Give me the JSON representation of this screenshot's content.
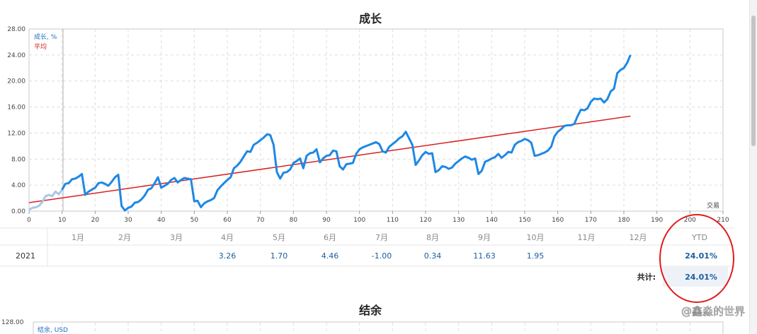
{
  "chart_data": [
    {
      "type": "line",
      "title": "成长",
      "xlabel": "交易",
      "ylabel": "",
      "xlim": [
        0,
        210
      ],
      "ylim": [
        0,
        28
      ],
      "x_ticks": [
        "0",
        "10",
        "20",
        "30",
        "40",
        "50",
        "60",
        "70",
        "80",
        "90",
        "100",
        "110",
        "120",
        "130",
        "140",
        "150",
        "160",
        "170",
        "180",
        "190",
        "200",
        "210"
      ],
      "y_ticks": [
        "0.00",
        "4.00",
        "8.00",
        "12.00",
        "16.00",
        "20.00",
        "24.00",
        "28.00"
      ],
      "grid": true,
      "legend_position": "top-left",
      "series": [
        {
          "name": "成长, %",
          "color": "#1e88e5",
          "points": [
            [
              0,
              0.2
            ],
            [
              1,
              0.5
            ],
            [
              2,
              0.6
            ],
            [
              3,
              0.8
            ],
            [
              4,
              1.4
            ],
            [
              5,
              2.3
            ],
            [
              6,
              2.5
            ],
            [
              7,
              2.3
            ],
            [
              8,
              3.0
            ],
            [
              9,
              2.6
            ],
            [
              10,
              3.3
            ],
            [
              11,
              4.2
            ],
            [
              12,
              4.3
            ],
            [
              13,
              4.9
            ],
            [
              14,
              5.0
            ],
            [
              15,
              5.3
            ],
            [
              16,
              5.7
            ],
            [
              17,
              2.5
            ],
            [
              18,
              3.0
            ],
            [
              19,
              3.3
            ],
            [
              20,
              3.6
            ],
            [
              21,
              4.3
            ],
            [
              22,
              4.4
            ],
            [
              23,
              4.2
            ],
            [
              24,
              3.9
            ],
            [
              25,
              4.5
            ],
            [
              26,
              5.2
            ],
            [
              27,
              5.6
            ],
            [
              28,
              0.8
            ],
            [
              29,
              0.1
            ],
            [
              30,
              0.5
            ],
            [
              31,
              0.7
            ],
            [
              32,
              1.3
            ],
            [
              33,
              1.4
            ],
            [
              34,
              1.8
            ],
            [
              35,
              2.4
            ],
            [
              36,
              3.3
            ],
            [
              37,
              3.5
            ],
            [
              38,
              4.3
            ],
            [
              39,
              5.2
            ],
            [
              40,
              3.6
            ],
            [
              41,
              3.9
            ],
            [
              42,
              4.2
            ],
            [
              43,
              4.8
            ],
            [
              44,
              5.1
            ],
            [
              45,
              4.4
            ],
            [
              46,
              4.8
            ],
            [
              47,
              5.1
            ],
            [
              48,
              5.0
            ],
            [
              49,
              4.9
            ],
            [
              50,
              1.5
            ],
            [
              51,
              1.6
            ],
            [
              52,
              0.6
            ],
            [
              53,
              1.2
            ],
            [
              54,
              1.5
            ],
            [
              55,
              1.7
            ],
            [
              56,
              2.0
            ],
            [
              57,
              3.2
            ],
            [
              58,
              3.8
            ],
            [
              59,
              4.3
            ],
            [
              60,
              4.8
            ],
            [
              61,
              5.2
            ],
            [
              62,
              6.6
            ],
            [
              63,
              7.0
            ],
            [
              64,
              7.6
            ],
            [
              65,
              8.4
            ],
            [
              66,
              9.2
            ],
            [
              67,
              9.1
            ],
            [
              68,
              10.2
            ],
            [
              69,
              10.5
            ],
            [
              70,
              10.9
            ],
            [
              71,
              11.3
            ],
            [
              72,
              11.8
            ],
            [
              73,
              11.7
            ],
            [
              74,
              10.2
            ],
            [
              75,
              6.0
            ],
            [
              76,
              5.0
            ],
            [
              77,
              5.9
            ],
            [
              78,
              6.0
            ],
            [
              79,
              6.4
            ],
            [
              80,
              7.4
            ],
            [
              81,
              7.7
            ],
            [
              82,
              8.1
            ],
            [
              83,
              6.6
            ],
            [
              84,
              8.5
            ],
            [
              85,
              8.9
            ],
            [
              86,
              9.0
            ],
            [
              87,
              9.5
            ],
            [
              88,
              7.5
            ],
            [
              89,
              8.1
            ],
            [
              90,
              8.5
            ],
            [
              91,
              8.6
            ],
            [
              92,
              9.3
            ],
            [
              93,
              9.2
            ],
            [
              94,
              6.9
            ],
            [
              95,
              6.4
            ],
            [
              96,
              7.2
            ],
            [
              97,
              7.3
            ],
            [
              98,
              7.4
            ],
            [
              99,
              8.8
            ],
            [
              100,
              9.5
            ],
            [
              101,
              9.8
            ],
            [
              102,
              10.0
            ],
            [
              103,
              10.2
            ],
            [
              104,
              10.4
            ],
            [
              105,
              10.6
            ],
            [
              106,
              10.3
            ],
            [
              107,
              9.2
            ],
            [
              108,
              9.0
            ],
            [
              109,
              9.9
            ],
            [
              110,
              10.3
            ],
            [
              111,
              10.7
            ],
            [
              112,
              11.2
            ],
            [
              113,
              11.5
            ],
            [
              114,
              12.2
            ],
            [
              115,
              11.2
            ],
            [
              116,
              10.2
            ],
            [
              117,
              7.1
            ],
            [
              118,
              7.8
            ],
            [
              119,
              8.6
            ],
            [
              120,
              9.1
            ],
            [
              121,
              8.8
            ],
            [
              122,
              8.9
            ],
            [
              123,
              6.0
            ],
            [
              124,
              6.3
            ],
            [
              125,
              6.9
            ],
            [
              126,
              6.8
            ],
            [
              127,
              6.5
            ],
            [
              128,
              6.7
            ],
            [
              129,
              7.3
            ],
            [
              130,
              7.7
            ],
            [
              131,
              8.1
            ],
            [
              132,
              8.4
            ],
            [
              133,
              8.2
            ],
            [
              134,
              7.9
            ],
            [
              135,
              8.1
            ],
            [
              136,
              5.7
            ],
            [
              137,
              6.2
            ],
            [
              138,
              7.6
            ],
            [
              139,
              7.8
            ],
            [
              140,
              8.1
            ],
            [
              141,
              8.3
            ],
            [
              142,
              8.8
            ],
            [
              143,
              8.2
            ],
            [
              144,
              8.6
            ],
            [
              145,
              9.1
            ],
            [
              146,
              9.0
            ],
            [
              147,
              10.2
            ],
            [
              148,
              10.6
            ],
            [
              149,
              10.8
            ],
            [
              150,
              11.1
            ],
            [
              151,
              10.9
            ],
            [
              152,
              10.5
            ],
            [
              153,
              8.5
            ],
            [
              154,
              8.6
            ],
            [
              155,
              8.8
            ],
            [
              156,
              9.0
            ],
            [
              157,
              9.3
            ],
            [
              158,
              9.9
            ],
            [
              159,
              11.5
            ],
            [
              160,
              12.2
            ],
            [
              161,
              12.6
            ],
            [
              162,
              13.1
            ],
            [
              163,
              13.2
            ],
            [
              164,
              13.2
            ],
            [
              165,
              13.4
            ],
            [
              166,
              14.6
            ],
            [
              167,
              15.6
            ],
            [
              168,
              15.5
            ],
            [
              169,
              15.8
            ],
            [
              170,
              16.8
            ],
            [
              171,
              17.3
            ],
            [
              172,
              17.2
            ],
            [
              173,
              17.3
            ],
            [
              174,
              16.7
            ],
            [
              175,
              17.2
            ],
            [
              176,
              18.4
            ],
            [
              177,
              18.8
            ],
            [
              178,
              21.2
            ],
            [
              179,
              21.7
            ],
            [
              180,
              22.0
            ],
            [
              181,
              22.8
            ],
            [
              182,
              24.0
            ]
          ]
        },
        {
          "name": "平均",
          "color": "#d62020",
          "points": [
            [
              0,
              1.3
            ],
            [
              182,
              14.6
            ]
          ]
        }
      ]
    },
    {
      "type": "line",
      "title": "结余",
      "ylabel": "",
      "y_ticks": [
        "128.00"
      ],
      "legend": [
        "结余, USD"
      ]
    }
  ],
  "monthly_table": {
    "months": [
      "1月",
      "2月",
      "3月",
      "4月",
      "5月",
      "6月",
      "7月",
      "8月",
      "9月",
      "10月",
      "11月",
      "12月"
    ],
    "ytd_label": "YTD",
    "year": "2021",
    "values": [
      "",
      "",
      "",
      "3.26",
      "1.70",
      "4.46",
      "-1.00",
      "0.34",
      "11.63",
      "1.95",
      "",
      ""
    ],
    "ytd_value": "24.01%",
    "total_label": "共计:",
    "total_value": "24.01%",
    "positive_color": "#1a5fa0",
    "negative_color": "#d62020"
  },
  "annotation": {
    "circle_color": "#e21b1b"
  },
  "watermark": {
    "text": "@鑫淼的世界"
  }
}
